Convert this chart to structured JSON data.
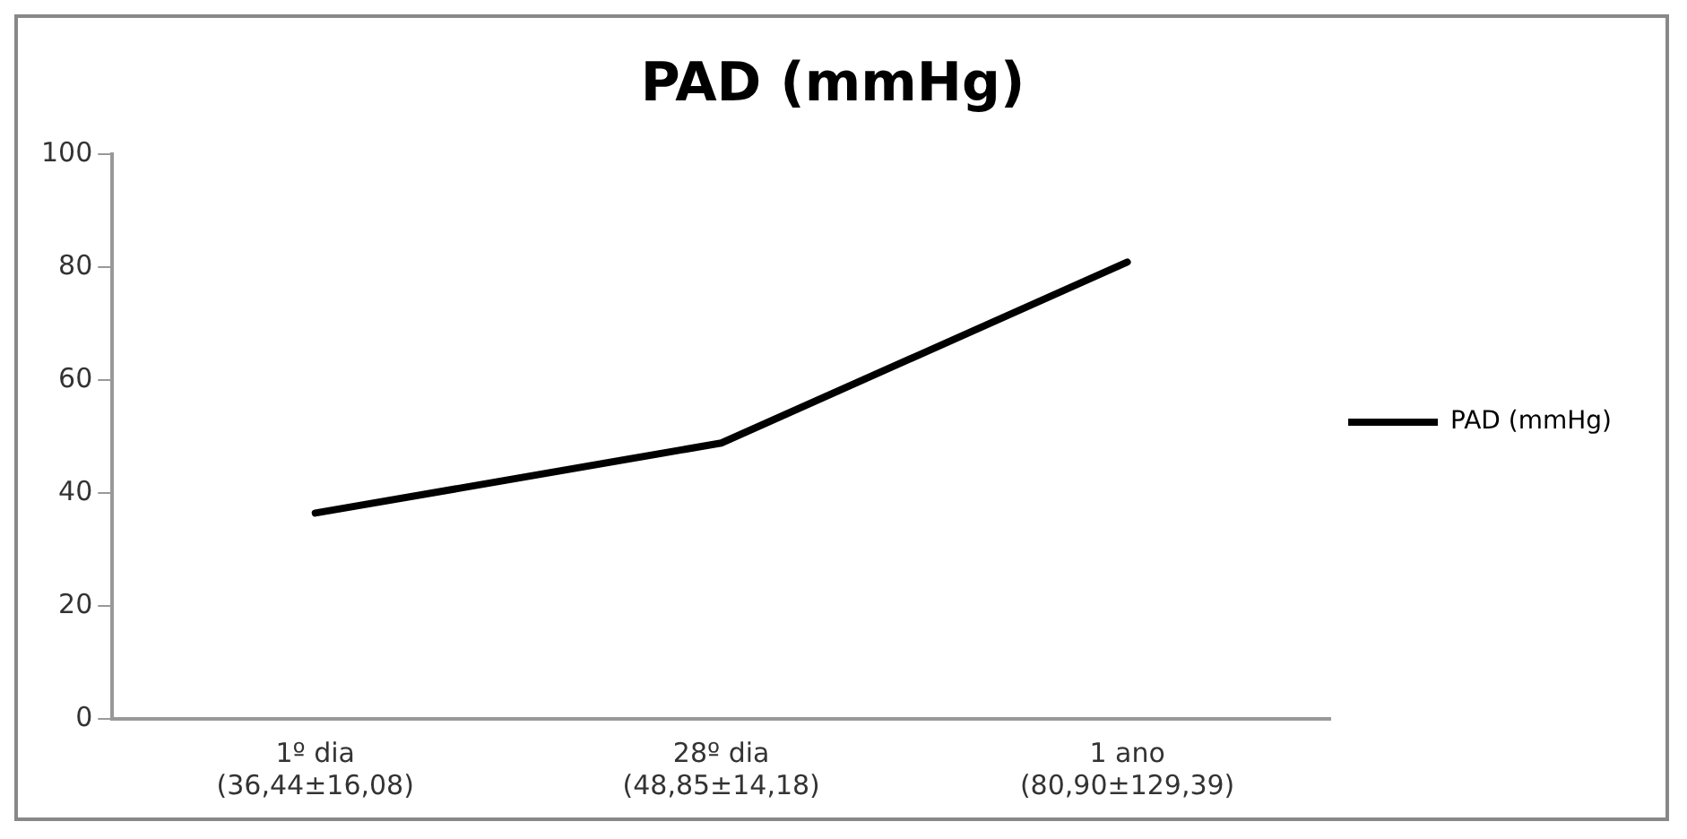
{
  "chart_data": {
    "type": "line",
    "title": "PAD (mmHg)",
    "categories": [
      "1º dia\n(36,44±16,08)",
      "28º dia\n(48,85±14,18)",
      "1 ano\n(80,90±129,39)"
    ],
    "series": [
      {
        "name": "PAD (mmHg)",
        "color": "#000000",
        "values": [
          36.44,
          48.85,
          80.9
        ]
      }
    ],
    "ylim": [
      0,
      100
    ],
    "yticks": [
      0,
      20,
      40,
      60,
      80,
      100
    ],
    "grid": false,
    "legend": "right",
    "marker": "none",
    "line_style": "solid"
  }
}
